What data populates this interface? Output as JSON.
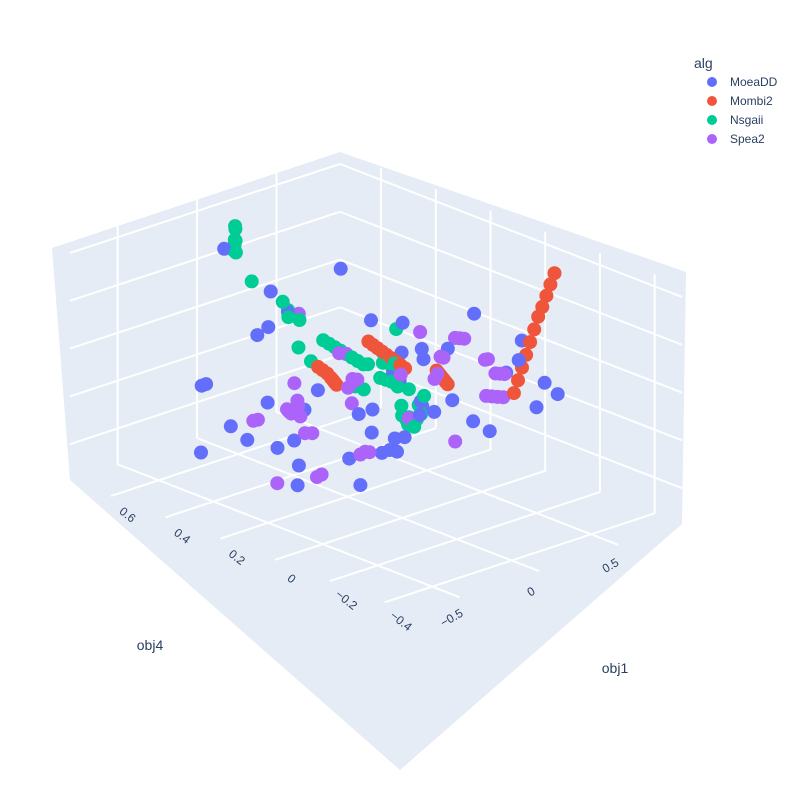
{
  "chart_data": {
    "type": "scatter",
    "dimensions": "3d",
    "legend": {
      "title": "alg",
      "placement": "top-right"
    },
    "axes": {
      "obj4": {
        "title": "obj4",
        "ticks": [
          "−0.5",
          "0",
          "0.5"
        ],
        "range": [
          -0.8,
          0.9
        ]
      },
      "obj1": {
        "title": "obj1",
        "ticks": [
          "−0.4",
          "−0.2",
          "0",
          "0.2",
          "0.4",
          "0.6"
        ],
        "range": [
          -0.5,
          0.75
        ]
      },
      "z": {
        "title": "",
        "ticks": [],
        "range": [
          -0.8,
          0.8
        ]
      }
    },
    "series": [
      {
        "name": "MoeaDD",
        "color": "#636efa",
        "points": [
          [
            -0.67,
            -0.28,
            0.36
          ],
          [
            -0.55,
            -0.3,
            0.05
          ],
          [
            -0.32,
            -0.25,
            0.18
          ],
          [
            -0.62,
            0.17,
            0.52
          ],
          [
            -0.42,
            -0.05,
            -0.22
          ],
          [
            -0.58,
            0.29,
            -0.19
          ],
          [
            -0.44,
            0.48,
            -0.55
          ],
          [
            -0.12,
            0.42,
            0.22
          ],
          [
            -0.18,
            -0.03,
            -0.28
          ],
          [
            -0.08,
            0.52,
            -0.62
          ],
          [
            0.02,
            0.32,
            -0.18
          ],
          [
            -0.15,
            0.63,
            -0.3
          ],
          [
            -0.35,
            0.53,
            -0.17
          ],
          [
            0.08,
            -0.12,
            0.39
          ],
          [
            -0.26,
            -0.41,
            0.23
          ],
          [
            0.37,
            0.26,
            -0.66
          ],
          [
            0.43,
            -0.07,
            -0.32
          ],
          [
            0.22,
            0.05,
            0.15
          ],
          [
            0.48,
            0.27,
            -0.62
          ],
          [
            0.13,
            -0.35,
            0.46
          ],
          [
            -0.46,
            -0.45,
            0.47
          ],
          [
            0.58,
            0.22,
            -0.45
          ],
          [
            0.72,
            0.35,
            -0.52
          ],
          [
            0.05,
            0.68,
            0.5
          ],
          [
            0.63,
            0.48,
            -0.04
          ],
          [
            0.38,
            -0.27,
            0.0
          ],
          [
            -0.22,
            0.25,
            -0.55
          ],
          [
            0.24,
            0.62,
            0.19
          ],
          [
            0.16,
            0.12,
            -0.41
          ],
          [
            0.47,
            0.63,
            -0.69
          ],
          [
            -0.37,
            0.18,
            -0.28
          ],
          [
            0.62,
            -0.02,
            -0.03
          ],
          [
            0.29,
            0.28,
            -0.53
          ],
          [
            0.09,
            0.47,
            0.21
          ],
          [
            -0.05,
            0.13,
            -0.18
          ],
          [
            0.51,
            0.33,
            -0.23
          ],
          [
            0.33,
            0.12,
            0.13
          ],
          [
            -0.28,
            0.22,
            -0.64
          ],
          [
            0.77,
            0.01,
            0.11
          ],
          [
            0.19,
            -0.41,
            0.33
          ],
          [
            0.69,
            0.41,
            -0.42
          ],
          [
            -0.47,
            -0.12,
            -0.33
          ],
          [
            0.11,
            0.52,
            -0.74
          ],
          [
            0.56,
            0.55,
            0.28
          ],
          [
            0.41,
            -0.33,
            0.12
          ],
          [
            -0.09,
            0.44,
            -0.31
          ],
          [
            0.28,
            -0.1,
            0.54
          ],
          [
            0.53,
            0.31,
            -0.1
          ],
          [
            0.14,
            0.08,
            0.4
          ],
          [
            0.85,
            0.42,
            -0.65
          ]
        ]
      },
      {
        "name": "Mombi2",
        "color": "#ef553b",
        "points": [
          [
            0.1,
            -0.35,
            0.25
          ],
          [
            0.16,
            -0.33,
            0.3
          ],
          [
            0.22,
            -0.31,
            0.35
          ],
          [
            0.28,
            -0.29,
            0.4
          ],
          [
            0.34,
            -0.27,
            0.45
          ],
          [
            0.4,
            -0.25,
            0.5
          ],
          [
            0.46,
            -0.23,
            0.55
          ],
          [
            0.52,
            -0.21,
            0.58
          ],
          [
            0.58,
            -0.19,
            0.62
          ],
          [
            0.64,
            -0.17,
            0.66
          ],
          [
            0.7,
            -0.15,
            0.7
          ],
          [
            0.2,
            -0.05,
            0.06
          ],
          [
            0.24,
            -0.02,
            0.04
          ],
          [
            0.28,
            0.01,
            0.02
          ],
          [
            0.32,
            0.04,
            0.0
          ],
          [
            0.36,
            0.07,
            -0.02
          ],
          [
            0.4,
            0.1,
            -0.04
          ],
          [
            0.44,
            0.13,
            -0.06
          ],
          [
            -0.12,
            -0.08,
            0.3
          ],
          [
            -0.08,
            -0.04,
            0.28
          ],
          [
            -0.04,
            0.0,
            0.26
          ],
          [
            0.0,
            0.04,
            0.24
          ],
          [
            0.04,
            0.08,
            0.22
          ],
          [
            0.08,
            0.12,
            0.2
          ],
          [
            0.12,
            0.16,
            0.18
          ],
          [
            0.16,
            0.2,
            0.16
          ],
          [
            0.2,
            0.24,
            0.14
          ],
          [
            -0.3,
            0.1,
            0.2
          ],
          [
            -0.26,
            0.14,
            0.18
          ],
          [
            -0.22,
            0.18,
            0.16
          ],
          [
            0.0,
            0.24,
            -0.08
          ],
          [
            0.04,
            0.27,
            -0.1
          ],
          [
            0.08,
            0.3,
            -0.12
          ],
          [
            0.12,
            0.33,
            -0.14
          ]
        ]
      },
      {
        "name": "Nsgaii",
        "color": "#00cc96",
        "points": [
          [
            0.76,
            0.42,
            -0.74
          ],
          [
            0.8,
            0.44,
            -0.72
          ],
          [
            0.78,
            0.4,
            -0.7
          ],
          [
            0.82,
            0.46,
            -0.76
          ],
          [
            0.74,
            0.43,
            -0.68
          ],
          [
            0.79,
            0.39,
            -0.66
          ],
          [
            0.77,
            0.45,
            -0.64
          ],
          [
            0.81,
            0.41,
            -0.62
          ],
          [
            0.6,
            0.52,
            -0.5
          ],
          [
            0.55,
            0.46,
            -0.46
          ],
          [
            -0.1,
            0.55,
            0.62
          ],
          [
            -0.05,
            0.58,
            0.66
          ],
          [
            0.0,
            0.61,
            0.7
          ],
          [
            0.05,
            0.64,
            0.68
          ],
          [
            0.1,
            0.67,
            0.55
          ],
          [
            0.15,
            0.7,
            0.48
          ],
          [
            0.2,
            0.73,
            0.42
          ],
          [
            0.25,
            0.76,
            0.36
          ],
          [
            0.1,
            0.2,
            0.05
          ],
          [
            0.15,
            0.25,
            0.02
          ],
          [
            0.2,
            0.3,
            -0.01
          ],
          [
            0.25,
            0.35,
            -0.04
          ],
          [
            0.3,
            0.4,
            -0.07
          ],
          [
            0.35,
            0.45,
            -0.1
          ],
          [
            0.4,
            0.5,
            -0.13
          ],
          [
            0.45,
            0.55,
            -0.16
          ],
          [
            0.05,
            0.1,
            0.15
          ],
          [
            0.0,
            0.05,
            0.2
          ],
          [
            -0.05,
            0.0,
            0.25
          ],
          [
            0.5,
            0.35,
            -0.3
          ],
          [
            0.55,
            0.4,
            -0.34
          ],
          [
            0.45,
            0.3,
            -0.26
          ],
          [
            0.35,
            0.22,
            -0.2
          ],
          [
            0.3,
            0.15,
            -0.15
          ],
          [
            -0.15,
            0.35,
            0.45
          ],
          [
            -0.2,
            0.3,
            0.4
          ],
          [
            0.18,
            0.48,
            0.12
          ],
          [
            0.28,
            0.58,
            0.08
          ],
          [
            0.38,
            0.6,
            -0.22
          ],
          [
            0.62,
            0.28,
            -0.4
          ],
          [
            0.68,
            0.52,
            -0.38
          ],
          [
            0.12,
            0.62,
            0.3
          ],
          [
            0.22,
            0.15,
            0.28
          ],
          [
            0.42,
            0.2,
            -0.48
          ],
          [
            0.08,
            0.38,
            -0.05
          ]
        ]
      },
      {
        "name": "Spea2",
        "color": "#ab63fa",
        "points": [
          [
            -0.8,
            -0.3,
            0.62
          ],
          [
            -0.76,
            -0.26,
            0.56
          ],
          [
            -0.72,
            -0.22,
            0.48
          ],
          [
            -0.74,
            -0.31,
            0.12
          ],
          [
            -0.7,
            -0.27,
            0.08
          ],
          [
            -0.66,
            -0.23,
            0.02
          ],
          [
            -0.68,
            -0.1,
            -0.2
          ],
          [
            -0.64,
            -0.06,
            -0.26
          ],
          [
            -0.55,
            -0.47,
            0.8
          ],
          [
            -0.5,
            -0.43,
            0.76
          ],
          [
            -0.45,
            -0.39,
            0.6
          ],
          [
            -0.4,
            -0.35,
            0.52
          ],
          [
            -0.48,
            0.05,
            -0.1
          ],
          [
            -0.44,
            0.1,
            -0.15
          ],
          [
            -0.4,
            0.14,
            -0.08
          ],
          [
            -0.35,
            0.18,
            -0.02
          ],
          [
            -0.3,
            0.22,
            0.05
          ],
          [
            0.0,
            0.38,
            -0.32
          ],
          [
            0.06,
            0.42,
            -0.38
          ],
          [
            0.12,
            0.46,
            -0.44
          ],
          [
            0.18,
            0.5,
            -0.5
          ],
          [
            0.24,
            0.54,
            -0.56
          ],
          [
            0.3,
            0.58,
            -0.62
          ],
          [
            0.36,
            0.62,
            -0.66
          ],
          [
            0.42,
            0.66,
            -0.7
          ],
          [
            0.48,
            0.7,
            -0.74
          ],
          [
            0.08,
            -0.18,
            0.5
          ],
          [
            0.12,
            -0.14,
            0.46
          ],
          [
            0.16,
            -0.1,
            0.42
          ],
          [
            -0.15,
            -0.4,
            0.6
          ],
          [
            -0.1,
            -0.36,
            0.55
          ],
          [
            0.3,
            -0.2,
            0.2
          ],
          [
            0.34,
            -0.16,
            0.16
          ],
          [
            0.38,
            -0.12,
            0.12
          ],
          [
            0.55,
            -0.05,
            -0.15
          ],
          [
            0.6,
            0.0,
            -0.2
          ],
          [
            0.65,
            0.05,
            -0.25
          ],
          [
            0.7,
            0.1,
            -0.3
          ],
          [
            -0.22,
            0.4,
            -0.35
          ],
          [
            -0.18,
            0.44,
            -0.4
          ],
          [
            0.2,
            0.32,
            0.0
          ],
          [
            0.25,
            0.08,
            0.3
          ],
          [
            0.44,
            0.44,
            -0.5
          ],
          [
            0.72,
            0.6,
            -0.55
          ],
          [
            -0.32,
            -0.18,
            0.4
          ],
          [
            0.05,
            0.26,
            0.1
          ],
          [
            0.66,
            0.36,
            -0.62
          ],
          [
            0.52,
            0.68,
            -0.1
          ],
          [
            -0.58,
            0.12,
            -0.45
          ],
          [
            0.85,
            0.3,
            -0.8
          ]
        ]
      }
    ]
  }
}
